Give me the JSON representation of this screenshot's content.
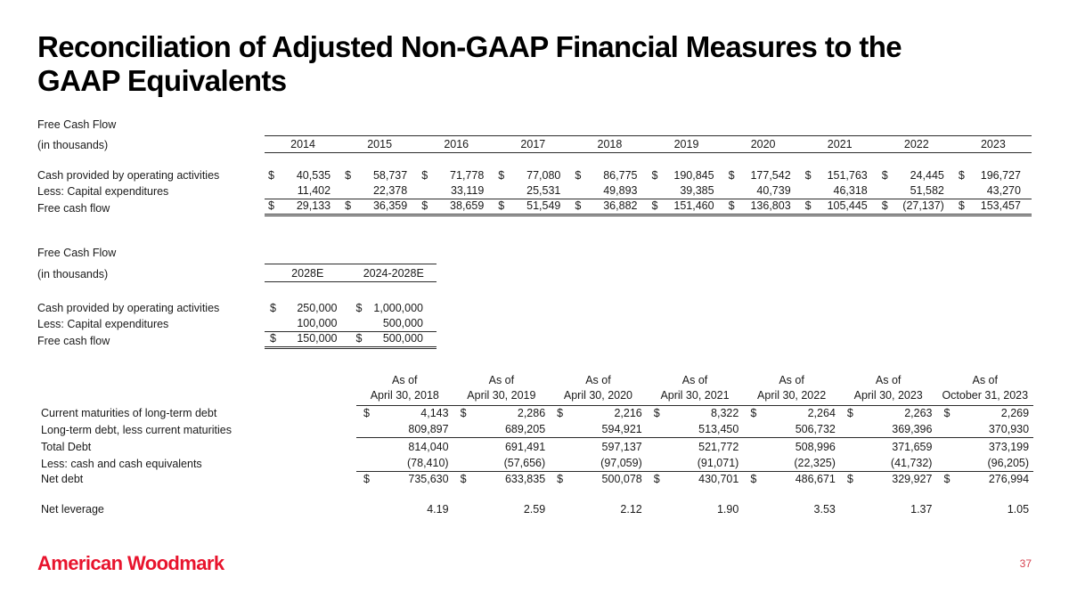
{
  "slide": {
    "title_line1": "Reconciliation of Adjusted Non-GAAP Financial Measures to the",
    "title_line2": "GAAP Equivalents",
    "logo_text": "American Woodmark",
    "page_number": "37",
    "brand_red": "#e8142d",
    "page_number_red": "#d6404f"
  },
  "tables": {
    "fcf": {
      "caption_line1": "Free Cash Flow",
      "caption_line2": "(in thousands)",
      "columns": [
        "2014",
        "2015",
        "2016",
        "2017",
        "2018",
        "2019",
        "2020",
        "2021",
        "2022",
        "2023"
      ],
      "rows": [
        {
          "label": "Cash provided by operating activities",
          "dollar": true,
          "values": [
            "40,535",
            "58,737",
            "71,778",
            "77,080",
            "86,775",
            "190,845",
            "177,542",
            "151,763",
            "24,445",
            "196,727"
          ]
        },
        {
          "label": "Less: Capital expenditures",
          "dollar": false,
          "values": [
            "11,402",
            "22,378",
            "33,119",
            "25,531",
            "49,893",
            "39,385",
            "40,739",
            "46,318",
            "51,582",
            "43,270"
          ]
        },
        {
          "label": "Free cash flow",
          "dollar": true,
          "values": [
            "29,133",
            "36,359",
            "38,659",
            "51,549",
            "36,882",
            "151,460",
            "136,803",
            "105,445",
            "(27,137)",
            "153,457"
          ]
        }
      ]
    },
    "fcf_projection": {
      "caption_line1": "Free Cash Flow",
      "caption_line2": "(in thousands)",
      "columns": [
        "2028E",
        "2024-2028E"
      ],
      "rows": [
        {
          "label": "Cash provided by operating activities",
          "dollar": true,
          "values": [
            "250,000",
            "1,000,000"
          ]
        },
        {
          "label": "Less: Capital expenditures",
          "dollar": false,
          "values": [
            "100,000",
            "500,000"
          ]
        },
        {
          "label": "Free cash flow",
          "dollar": true,
          "values": [
            "150,000",
            "500,000"
          ]
        }
      ]
    },
    "debt": {
      "columns": [
        {
          "line1": "As of",
          "line2": "April 30, 2018"
        },
        {
          "line1": "As of",
          "line2": "April 30, 2019"
        },
        {
          "line1": "As of",
          "line2": "April 30, 2020"
        },
        {
          "line1": "As of",
          "line2": "April 30, 2021"
        },
        {
          "line1": "As of",
          "line2": "April 30, 2022"
        },
        {
          "line1": "As of",
          "line2": "April 30, 2023"
        },
        {
          "line1": "As of",
          "line2": "October 31, 2023"
        }
      ],
      "rows": [
        {
          "label": "Current maturities of long-term debt",
          "dollar": true,
          "values": [
            "4,143",
            "2,286",
            "2,216",
            "8,322",
            "2,264",
            "2,263",
            "2,269"
          ]
        },
        {
          "label": "Long-term debt, less current maturities",
          "dollar": false,
          "values": [
            "809,897",
            "689,205",
            "594,921",
            "513,450",
            "506,732",
            "369,396",
            "370,930"
          ]
        },
        {
          "label": "Total Debt",
          "dollar": false,
          "values": [
            "814,040",
            "691,491",
            "597,137",
            "521,772",
            "508,996",
            "371,659",
            "373,199"
          ]
        },
        {
          "label": "Less: cash and cash equivalents",
          "dollar": false,
          "values": [
            "(78,410)",
            "(57,656)",
            "(97,059)",
            "(91,071)",
            "(22,325)",
            "(41,732)",
            "(96,205)"
          ]
        },
        {
          "label": "Net debt",
          "dollar": true,
          "values": [
            "735,630",
            "633,835",
            "500,078",
            "430,701",
            "486,671",
            "329,927",
            "276,994"
          ]
        }
      ],
      "leverage_row": {
        "label": "Net leverage",
        "values": [
          "4.19",
          "2.59",
          "2.12",
          "1.90",
          "3.53",
          "1.37",
          "1.05"
        ]
      }
    }
  }
}
